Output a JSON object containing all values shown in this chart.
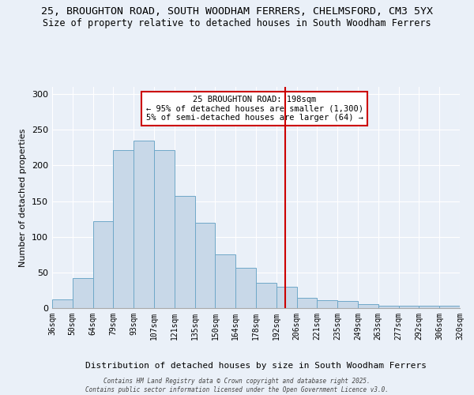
{
  "title": "25, BROUGHTON ROAD, SOUTH WOODHAM FERRERS, CHELMSFORD, CM3 5YX",
  "subtitle": "Size of property relative to detached houses in South Woodham Ferrers",
  "xlabel": "Distribution of detached houses by size in South Woodham Ferrers",
  "ylabel": "Number of detached properties",
  "bin_labels": [
    "36sqm",
    "50sqm",
    "64sqm",
    "79sqm",
    "93sqm",
    "107sqm",
    "121sqm",
    "135sqm",
    "150sqm",
    "164sqm",
    "178sqm",
    "192sqm",
    "206sqm",
    "221sqm",
    "235sqm",
    "249sqm",
    "263sqm",
    "277sqm",
    "292sqm",
    "306sqm",
    "320sqm"
  ],
  "bar_values": [
    12,
    42,
    122,
    221,
    235,
    221,
    157,
    120,
    75,
    57,
    35,
    30,
    14,
    11,
    10,
    5,
    3,
    3,
    3,
    3
  ],
  "bar_color": "#c8d8e8",
  "bar_edge_color": "#6fa8c8",
  "vline_color": "#cc0000",
  "annotation_text": "25 BROUGHTON ROAD: 198sqm\n← 95% of detached houses are smaller (1,300)\n5% of semi-detached houses are larger (64) →",
  "annotation_box_color": "#cc0000",
  "annotation_bg": "#ffffff",
  "ylim": [
    0,
    310
  ],
  "yticks": [
    0,
    50,
    100,
    150,
    200,
    250,
    300
  ],
  "background_color": "#eaf0f8",
  "axes_bg_color": "#eaf0f8",
  "title_fontsize": 9.5,
  "subtitle_fontsize": 8.5,
  "footnote": "Contains HM Land Registry data © Crown copyright and database right 2025.\nContains public sector information licensed under the Open Government Licence v3.0."
}
